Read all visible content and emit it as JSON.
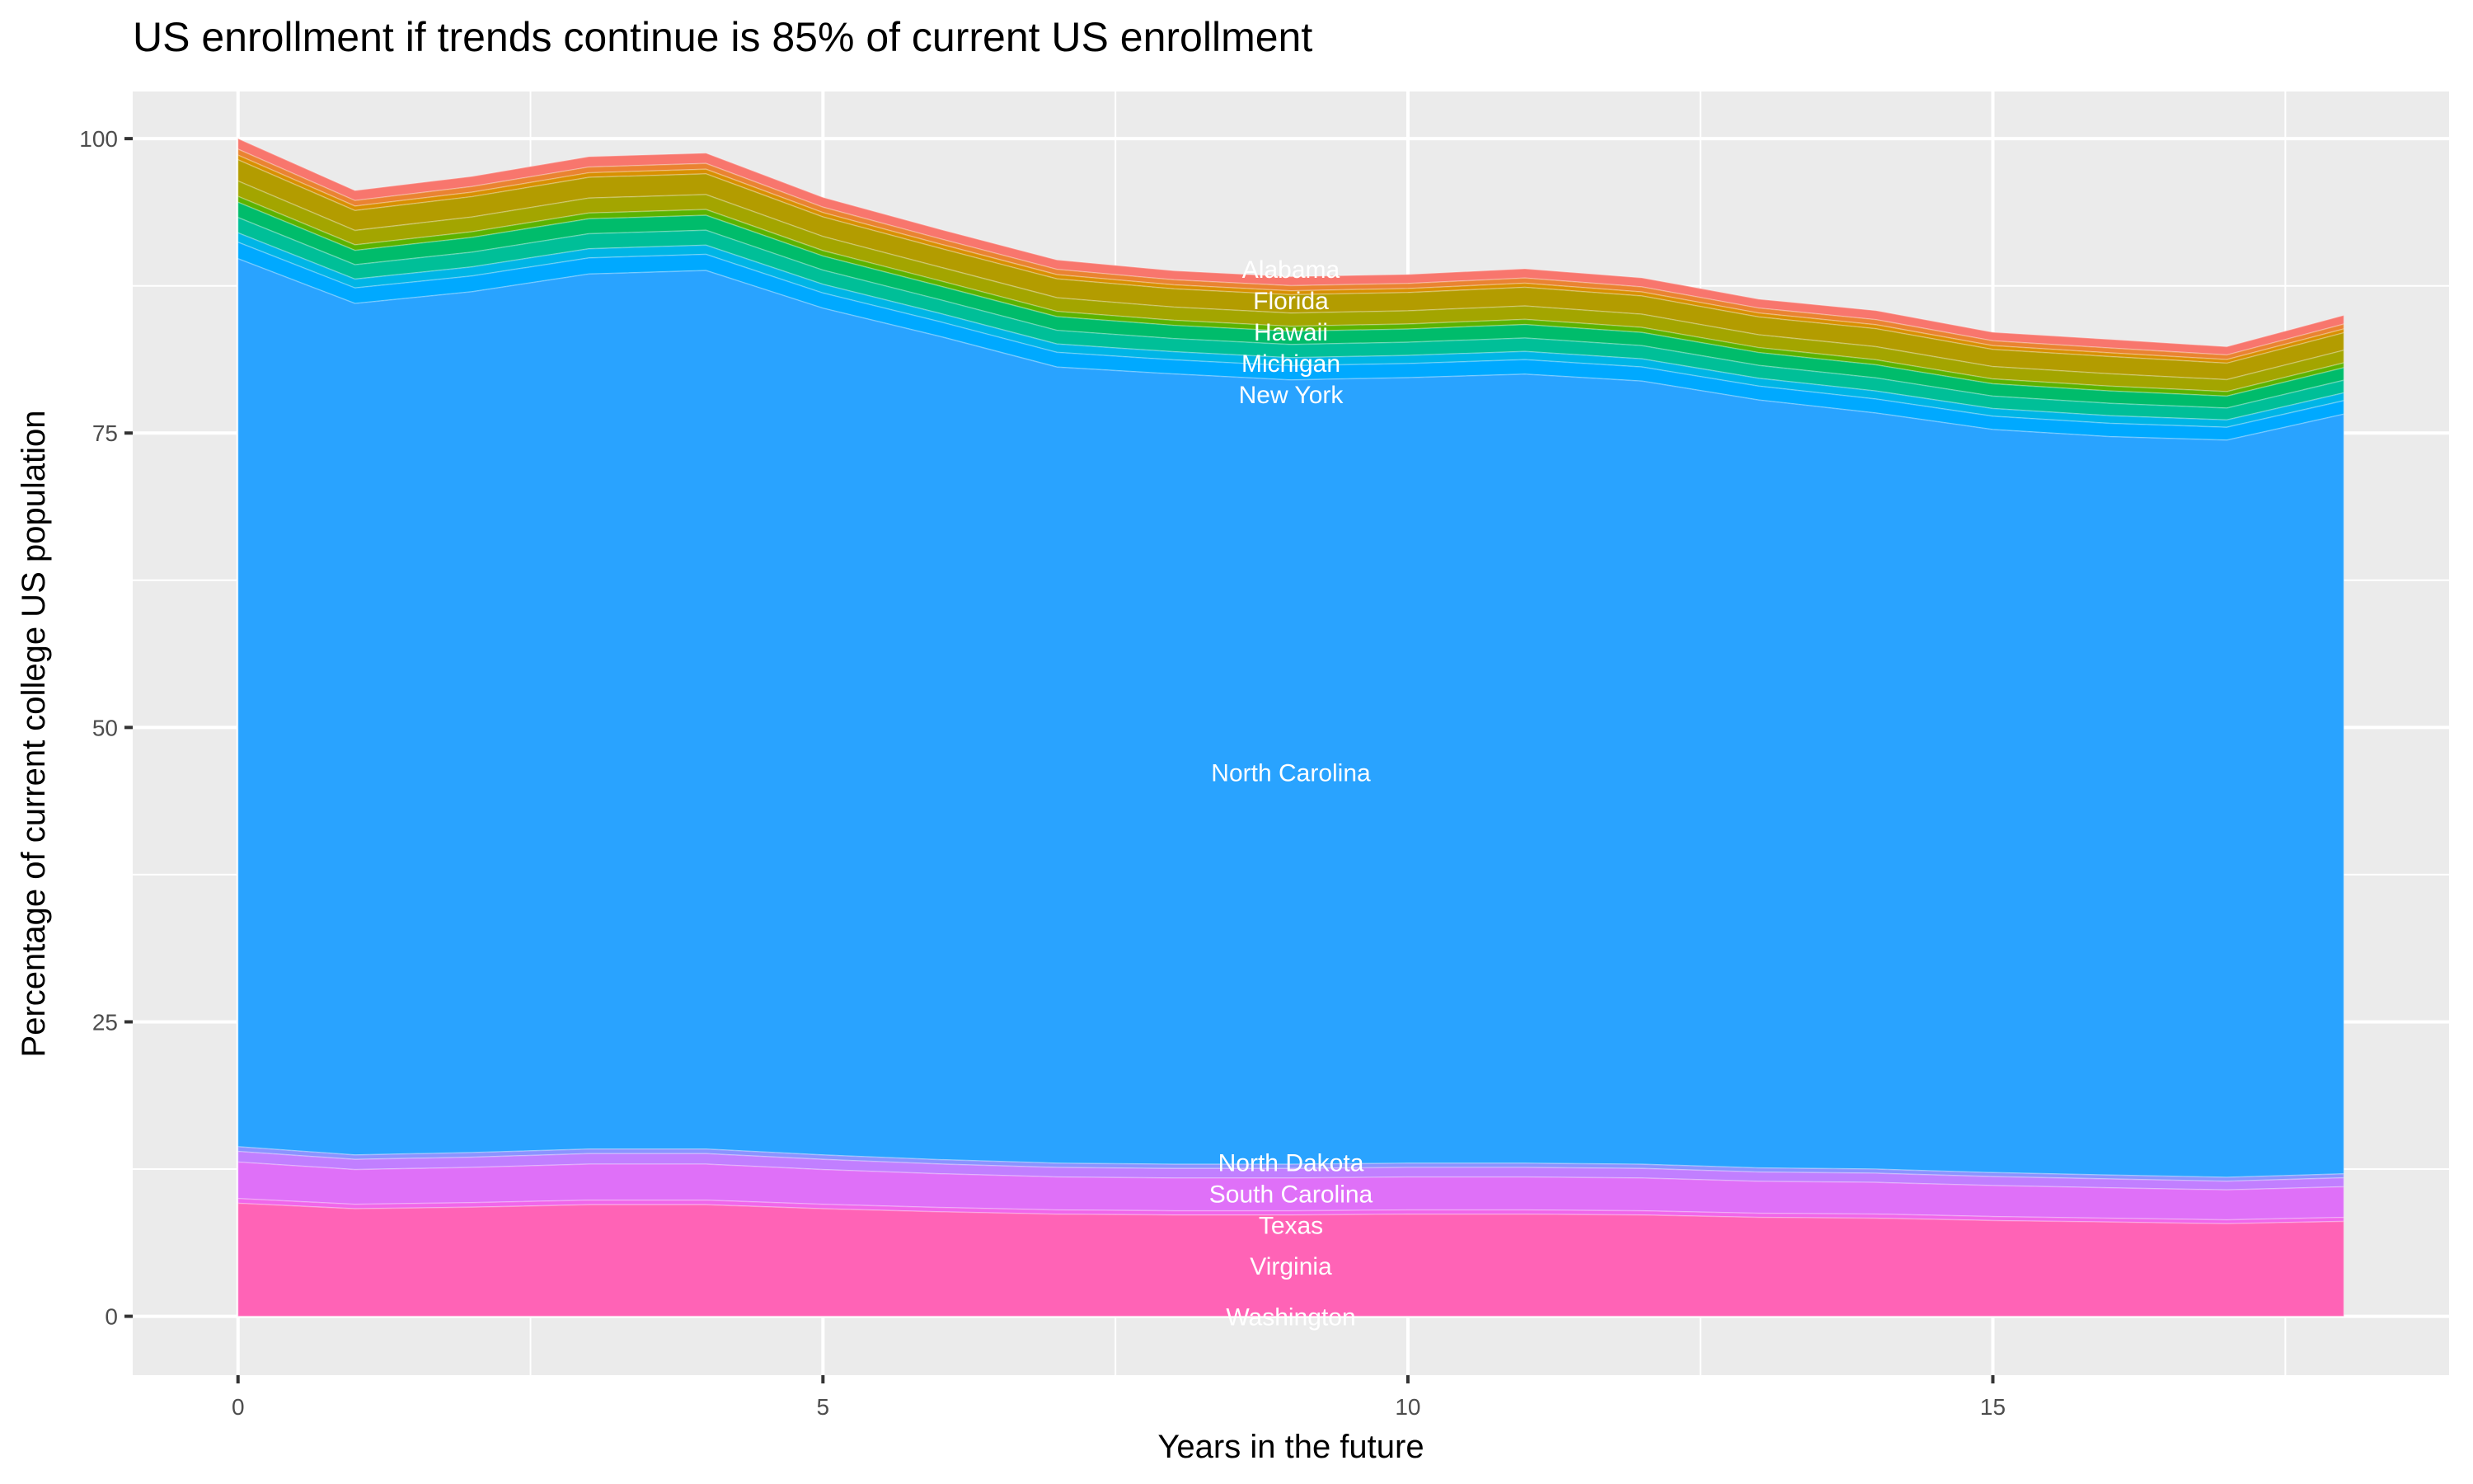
{
  "chart_data": {
    "type": "area",
    "stacked": true,
    "title": "US enrollment if trends continue is 85% of current US enrollment",
    "xlabel": "Years in the future",
    "ylabel": "Percentage of current college US population",
    "x": [
      0,
      1,
      2,
      3,
      4,
      5,
      6,
      7,
      8,
      9,
      10,
      11,
      12,
      13,
      14,
      15,
      16,
      17,
      18
    ],
    "xlim": [
      -0.9,
      18.9
    ],
    "ylim": [
      -5,
      104
    ],
    "x_ticks": [
      "0",
      "5",
      "10",
      "15"
    ],
    "y_ticks": [
      "0",
      "25",
      "50",
      "75",
      "100"
    ],
    "grid": true,
    "legend": "none",
    "label_x": 9,
    "series": [
      {
        "name": "Alabama",
        "color": "#F8766D",
        "values": [
          0.9,
          0.85,
          0.86,
          0.88,
          0.88,
          0.83,
          0.8,
          0.8,
          0.77,
          0.77,
          0.77,
          0.79,
          0.77,
          0.76,
          0.77,
          0.73,
          0.73,
          0.7,
          0.74
        ]
      },
      {
        "color": "#EA8331",
        "values": [
          0.5,
          0.47,
          0.48,
          0.49,
          0.49,
          0.46,
          0.45,
          0.45,
          0.43,
          0.43,
          0.43,
          0.44,
          0.43,
          0.42,
          0.43,
          0.41,
          0.41,
          0.39,
          0.41
        ]
      },
      {
        "color": "#D89000",
        "values": [
          0.4,
          0.38,
          0.38,
          0.39,
          0.39,
          0.37,
          0.36,
          0.36,
          0.34,
          0.34,
          0.34,
          0.35,
          0.34,
          0.34,
          0.34,
          0.32,
          0.32,
          0.31,
          0.33
        ]
      },
      {
        "name": "Florida",
        "color": "#B39C00",
        "values": [
          1.8,
          1.69,
          1.73,
          1.76,
          1.76,
          1.66,
          1.6,
          1.6,
          1.55,
          1.55,
          1.55,
          1.58,
          1.55,
          1.51,
          1.53,
          1.46,
          1.46,
          1.4,
          1.48
        ]
      },
      {
        "color": "#A3A500",
        "values": [
          1.3,
          1.22,
          1.25,
          1.27,
          1.27,
          1.2,
          1.16,
          1.16,
          1.12,
          1.12,
          1.12,
          1.14,
          1.12,
          1.09,
          1.11,
          1.05,
          1.05,
          1.01,
          1.07
        ]
      },
      {
        "color": "#5BB300",
        "values": [
          0.5,
          0.47,
          0.48,
          0.49,
          0.49,
          0.46,
          0.45,
          0.45,
          0.43,
          0.43,
          0.43,
          0.44,
          0.43,
          0.42,
          0.43,
          0.41,
          0.41,
          0.39,
          0.41
        ]
      },
      {
        "name": "Hawaii",
        "color": "#00BC6B",
        "values": [
          1.3,
          1.22,
          1.25,
          1.27,
          1.27,
          1.2,
          1.16,
          1.16,
          1.12,
          1.12,
          1.12,
          1.14,
          1.12,
          1.09,
          1.11,
          1.05,
          1.05,
          1.01,
          1.07
        ]
      },
      {
        "color": "#00BF98",
        "values": [
          1.3,
          1.22,
          1.25,
          1.27,
          1.27,
          1.2,
          1.16,
          1.16,
          1.12,
          1.12,
          1.12,
          1.14,
          1.12,
          1.09,
          1.11,
          1.05,
          1.05,
          1.01,
          1.07
        ]
      },
      {
        "name": "Michigan",
        "color": "#00B5E6",
        "values": [
          0.8,
          0.75,
          0.77,
          0.78,
          0.78,
          0.74,
          0.71,
          0.71,
          0.69,
          0.69,
          0.69,
          0.7,
          0.69,
          0.67,
          0.68,
          0.65,
          0.65,
          0.62,
          0.66
        ]
      },
      {
        "name": "New York",
        "color": "#00A9FF",
        "values": [
          1.4,
          1.32,
          1.34,
          1.37,
          1.37,
          1.29,
          1.25,
          1.25,
          1.2,
          1.2,
          1.2,
          1.23,
          1.2,
          1.18,
          1.19,
          1.13,
          1.13,
          1.09,
          1.15
        ]
      },
      {
        "name": "North Carolina",
        "color": "#29A3FF",
        "values": [
          75.4,
          72.3,
          73.1,
          74.3,
          74.6,
          71.9,
          69.9,
          67.6,
          67.1,
          66.6,
          66.7,
          67.0,
          66.5,
          65.2,
          64.2,
          63.1,
          62.7,
          62.6,
          64.5
        ]
      },
      {
        "color": "#8B93FF",
        "values": [
          0.4,
          0.38,
          0.39,
          0.39,
          0.39,
          0.38,
          0.37,
          0.36,
          0.36,
          0.36,
          0.36,
          0.36,
          0.36,
          0.35,
          0.35,
          0.34,
          0.33,
          0.33,
          0.34
        ]
      },
      {
        "name": "North Dakota",
        "color": "#C17FFF",
        "values": [
          0.9,
          0.86,
          0.87,
          0.89,
          0.89,
          0.86,
          0.83,
          0.81,
          0.81,
          0.81,
          0.81,
          0.81,
          0.81,
          0.79,
          0.78,
          0.76,
          0.75,
          0.74,
          0.76
        ]
      },
      {
        "name": "South Carolina",
        "color": "#DF70F8",
        "values": [
          3.1,
          2.95,
          2.99,
          3.06,
          3.06,
          2.95,
          2.86,
          2.8,
          2.78,
          2.78,
          2.8,
          2.8,
          2.78,
          2.71,
          2.69,
          2.63,
          2.58,
          2.54,
          2.6
        ]
      },
      {
        "name": "Texas",
        "color": "#F066EA",
        "values": [
          0.4,
          0.38,
          0.39,
          0.39,
          0.39,
          0.38,
          0.37,
          0.36,
          0.36,
          0.36,
          0.36,
          0.36,
          0.36,
          0.35,
          0.35,
          0.34,
          0.33,
          0.33,
          0.34
        ]
      },
      {
        "name": "Virginia",
        "color": "#FF63B6",
        "values": [
          9.6,
          9.13,
          9.26,
          9.47,
          9.47,
          9.13,
          8.87,
          8.67,
          8.6,
          8.6,
          8.67,
          8.67,
          8.6,
          8.4,
          8.33,
          8.13,
          8.0,
          7.86,
          8.06
        ]
      },
      {
        "name": "Washington",
        "color": "#FF65AC",
        "values": [
          0,
          0,
          0,
          0,
          0,
          0,
          0,
          0,
          0,
          0,
          0,
          0,
          0,
          0,
          0,
          0,
          0,
          0,
          0
        ]
      }
    ]
  }
}
